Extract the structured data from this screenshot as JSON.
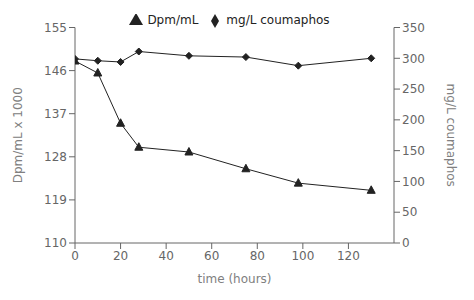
{
  "chart_data": {
    "type": "line",
    "xlabel": "time (hours)",
    "ylabel": "Dpm/mL x 1000",
    "y2label": "mg/L coumaphos",
    "x": [
      0,
      10,
      20,
      28,
      50,
      75,
      98,
      130
    ],
    "series": [
      {
        "name": "Dpm/mL",
        "color": "#222222",
        "marker": "triangle",
        "values": [
          148.0,
          145.5,
          135.0,
          130.0,
          129.0,
          125.5,
          122.5,
          121.0
        ]
      },
      {
        "name": "mg/L coumaphos",
        "color": "#222222",
        "marker": "diamond",
        "axis": "y2",
        "values": [
          299,
          296,
          294,
          311,
          304,
          302,
          288,
          300
        ]
      }
    ],
    "xlim": [
      0,
      140
    ],
    "xticks": [
      0,
      20,
      40,
      60,
      80,
      100,
      120
    ],
    "ylim": [
      110,
      155
    ],
    "yticks": [
      110,
      119,
      128,
      137,
      146,
      155
    ],
    "y2lim": [
      0,
      350
    ],
    "y2ticks": [
      0,
      50,
      100,
      150,
      200,
      250,
      300,
      350
    ],
    "grid": false,
    "legend": "top"
  }
}
